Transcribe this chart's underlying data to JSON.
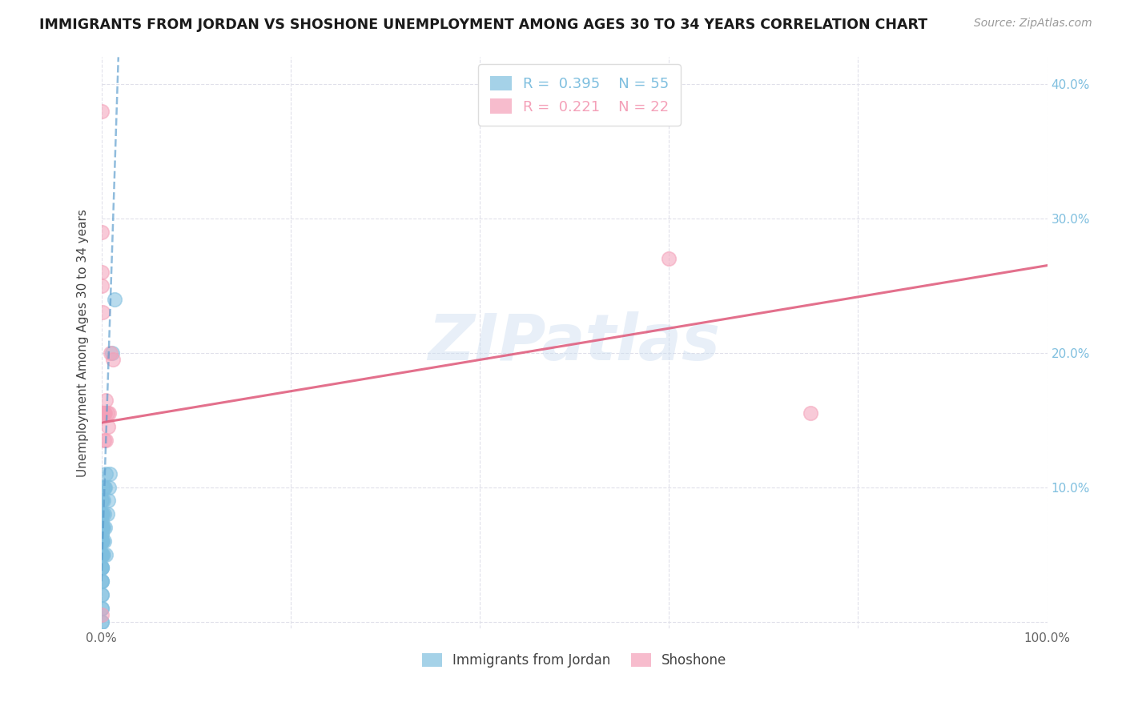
{
  "title": "IMMIGRANTS FROM JORDAN VS SHOSHONE UNEMPLOYMENT AMONG AGES 30 TO 34 YEARS CORRELATION CHART",
  "source": "Source: ZipAtlas.com",
  "ylabel": "Unemployment Among Ages 30 to 34 years",
  "xlim": [
    0,
    1.0
  ],
  "ylim": [
    -0.005,
    0.42
  ],
  "blue_R": "0.395",
  "blue_N": "55",
  "pink_R": "0.221",
  "pink_N": "22",
  "blue_color": "#7fbfdf",
  "pink_color": "#f4a0b8",
  "blue_line_color": "#5599cc",
  "pink_line_color": "#e06080",
  "background_color": "#ffffff",
  "grid_color": "#e0e0ea",
  "watermark": "ZIPatlas",
  "blue_scatter_x": [
    0.0,
    0.0,
    0.0,
    0.0,
    0.0,
    0.0,
    0.0,
    0.0,
    0.0,
    0.0,
    0.0,
    0.0,
    0.0,
    0.0,
    0.0,
    0.0,
    0.0,
    0.0,
    0.0,
    0.0,
    0.0,
    0.0,
    0.0,
    0.0,
    0.0,
    0.0,
    0.0,
    0.0,
    0.0,
    0.0,
    0.0,
    0.0,
    0.0,
    0.0,
    0.0,
    0.001,
    0.001,
    0.001,
    0.001,
    0.002,
    0.002,
    0.002,
    0.003,
    0.003,
    0.003,
    0.004,
    0.004,
    0.005,
    0.005,
    0.006,
    0.007,
    0.008,
    0.009,
    0.011,
    0.014
  ],
  "blue_scatter_y": [
    0.0,
    0.0,
    0.01,
    0.01,
    0.02,
    0.02,
    0.03,
    0.03,
    0.03,
    0.04,
    0.04,
    0.04,
    0.04,
    0.05,
    0.05,
    0.05,
    0.05,
    0.05,
    0.06,
    0.06,
    0.06,
    0.06,
    0.06,
    0.065,
    0.065,
    0.07,
    0.07,
    0.07,
    0.07,
    0.075,
    0.08,
    0.08,
    0.08,
    0.09,
    0.09,
    0.06,
    0.07,
    0.08,
    0.1,
    0.05,
    0.07,
    0.09,
    0.06,
    0.08,
    0.1,
    0.07,
    0.1,
    0.05,
    0.11,
    0.08,
    0.09,
    0.1,
    0.11,
    0.2,
    0.24
  ],
  "pink_scatter_x": [
    0.0,
    0.0,
    0.0,
    0.001,
    0.001,
    0.002,
    0.002,
    0.003,
    0.003,
    0.004,
    0.005,
    0.005,
    0.006,
    0.007,
    0.008,
    0.01,
    0.012,
    0.001,
    0.0,
    0.6,
    0.75,
    0.0
  ],
  "pink_scatter_y": [
    0.29,
    0.26,
    0.25,
    0.155,
    0.155,
    0.155,
    0.155,
    0.135,
    0.155,
    0.155,
    0.165,
    0.135,
    0.155,
    0.145,
    0.155,
    0.2,
    0.195,
    0.23,
    0.38,
    0.27,
    0.155,
    0.005
  ],
  "blue_trend_x": [
    0.0,
    0.018
  ],
  "blue_trend_y": [
    0.03,
    0.42
  ],
  "pink_trend_x": [
    0.0,
    1.0
  ],
  "pink_trend_y": [
    0.148,
    0.265
  ]
}
